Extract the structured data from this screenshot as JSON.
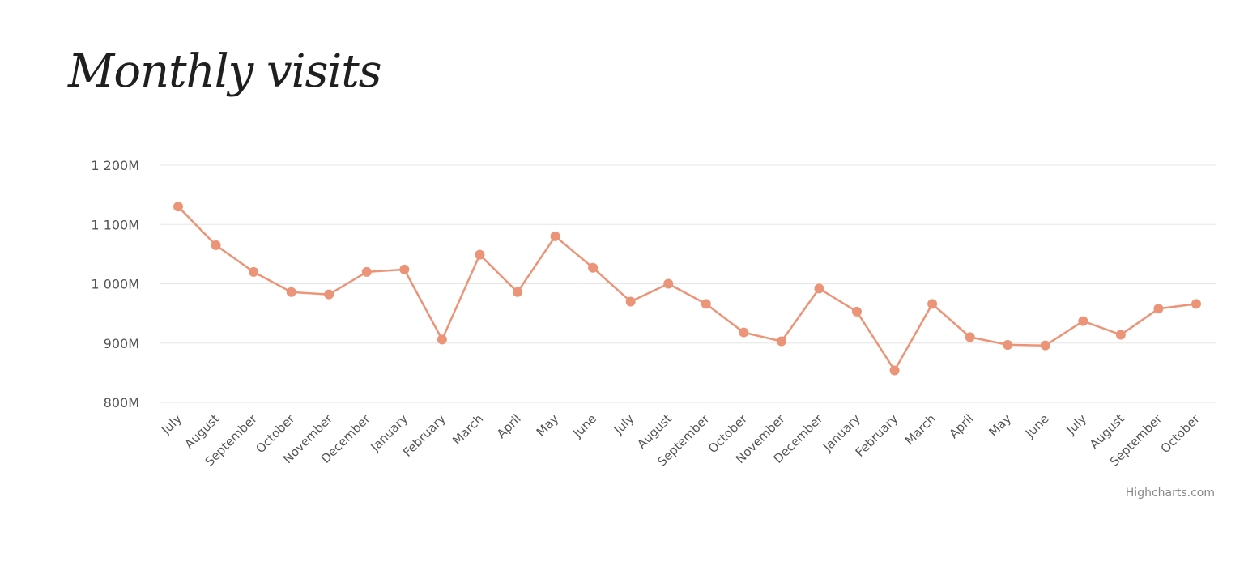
{
  "chart_data": {
    "type": "line",
    "title": "Monthly visits",
    "xlabel": "",
    "ylabel": "",
    "ylim": [
      800,
      1200
    ],
    "yticks": [
      800,
      900,
      1000,
      1100,
      1200
    ],
    "ytick_labels": [
      "800M",
      "900M",
      "1 000M",
      "1 100M",
      "1 200M"
    ],
    "grid": true,
    "legend": false,
    "color": "#ec9477",
    "categories": [
      "July",
      "August",
      "September",
      "October",
      "November",
      "December",
      "January",
      "February",
      "March",
      "April",
      "May",
      "June",
      "July",
      "August",
      "September",
      "October",
      "November",
      "December",
      "January",
      "February",
      "March",
      "April",
      "May",
      "June",
      "July",
      "August",
      "September",
      "October"
    ],
    "series": [
      {
        "values": [
          1130,
          1065,
          1020,
          986,
          982,
          1020,
          1024,
          906,
          1049,
          986,
          1080,
          1027,
          970,
          1000,
          966,
          918,
          903,
          992,
          953,
          854,
          966,
          910,
          897,
          896,
          937,
          914,
          958,
          966
        ]
      }
    ]
  },
  "credits": "Highcharts.com"
}
